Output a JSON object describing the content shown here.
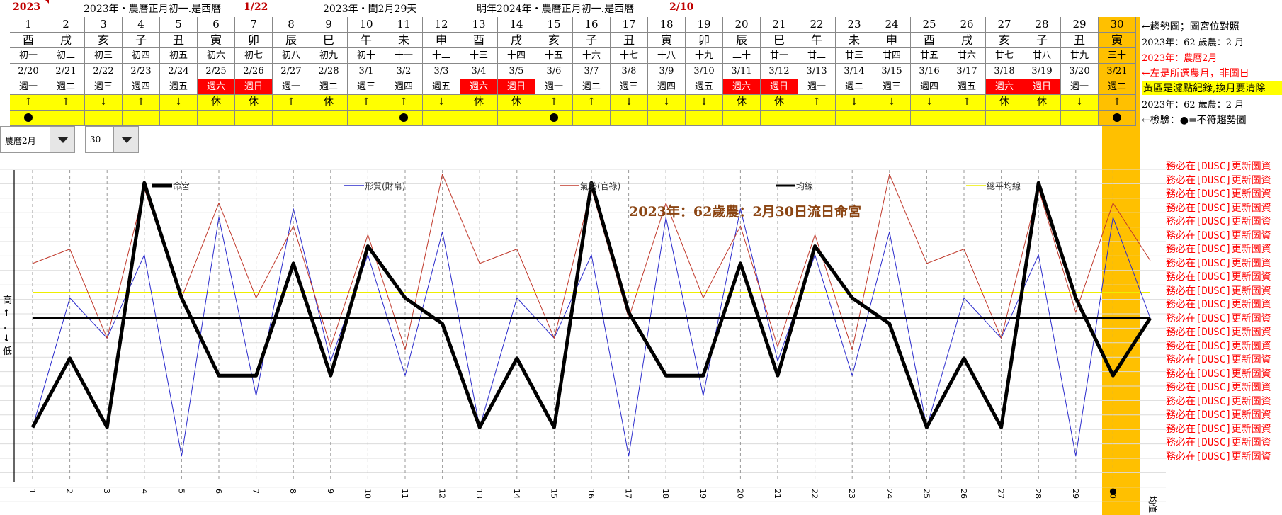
{
  "header": {
    "year": "2023",
    "info1": "2023年・農曆正月初一.是西曆",
    "info1_date": "1/22",
    "info2": "2023年・閏2月29天",
    "info3": "明年2024年・農曆正月初一.是西曆",
    "info3_date": "2/10"
  },
  "days": [
    "1",
    "2",
    "3",
    "4",
    "5",
    "6",
    "7",
    "8",
    "9",
    "10",
    "11",
    "12",
    "13",
    "14",
    "15",
    "16",
    "17",
    "18",
    "19",
    "20",
    "21",
    "22",
    "23",
    "24",
    "25",
    "26",
    "27",
    "28",
    "29",
    "30"
  ],
  "branches": [
    "酉",
    "戌",
    "亥",
    "子",
    "丑",
    "寅",
    "卯",
    "辰",
    "巳",
    "午",
    "未",
    "申",
    "酉",
    "戌",
    "亥",
    "子",
    "丑",
    "寅",
    "卯",
    "辰",
    "巳",
    "午",
    "未",
    "申",
    "酉",
    "戌",
    "亥",
    "子",
    "丑",
    "寅"
  ],
  "lunar": [
    "初一",
    "初二",
    "初三",
    "初四",
    "初五",
    "初六",
    "初七",
    "初八",
    "初九",
    "初十",
    "十一",
    "十二",
    "十三",
    "十四",
    "十五",
    "十六",
    "十七",
    "十八",
    "十九",
    "二十",
    "廿一",
    "廿二",
    "廿三",
    "廿四",
    "廿五",
    "廿六",
    "廿七",
    "廿八",
    "廿九",
    "三十"
  ],
  "solar": [
    "2/20",
    "2/21",
    "2/22",
    "2/23",
    "2/24",
    "2/25",
    "2/26",
    "2/27",
    "2/28",
    "3/1",
    "3/2",
    "3/3",
    "3/4",
    "3/5",
    "3/6",
    "3/7",
    "3/8",
    "3/9",
    "3/10",
    "3/11",
    "3/12",
    "3/13",
    "3/14",
    "3/15",
    "3/16",
    "3/17",
    "3/18",
    "3/19",
    "3/20",
    "3/21"
  ],
  "weekday": [
    "週一",
    "週二",
    "週三",
    "週四",
    "週五",
    "週六",
    "週日",
    "週一",
    "週二",
    "週三",
    "週四",
    "週五",
    "週六",
    "週日",
    "週一",
    "週二",
    "週三",
    "週四",
    "週五",
    "週六",
    "週日",
    "週一",
    "週二",
    "週三",
    "週四",
    "週五",
    "週六",
    "週日",
    "週一",
    "週二"
  ],
  "trend": [
    "↑",
    "↑",
    "↓",
    "↑",
    "↓",
    "休",
    "休",
    "↑",
    "休",
    "↑",
    "↑",
    "↓",
    "休",
    "休",
    "↑",
    "↑",
    "↓",
    "↓",
    "↓",
    "休",
    "休",
    "↑",
    "↓",
    "↓",
    "↓",
    "↑",
    "休",
    "休",
    "↓",
    "↑"
  ],
  "dots": [
    1,
    0,
    0,
    0,
    0,
    0,
    0,
    0,
    0,
    0,
    1,
    0,
    0,
    0,
    1,
    0,
    0,
    0,
    0,
    0,
    0,
    0,
    0,
    0,
    0,
    0,
    0,
    0,
    0,
    1
  ],
  "notes": {
    "n1": "←趨勢圖；圖宮位對照",
    "n2": "2023年：62 歲農：2 月",
    "n3": "2023年：農曆2月",
    "n4": "←左是所選農月，非圖日",
    "n5": "黃區是濾點紀錄,換月要清除",
    "n6": "2023年：62 歲農：2 月",
    "n7": "←檢驗：●=不符趨勢圖"
  },
  "controls": {
    "month_value": "農曆2月",
    "day_value": "30"
  },
  "colors": {
    "accent_orange": "#ffc000",
    "yellow": "#ffff00",
    "weekend_red": "#ff0000",
    "series_red": "#c0392b",
    "series_blue": "#2b2bcc"
  },
  "warning_text": "務必在[DUSC]更新圖資",
  "chart_data": {
    "type": "line",
    "title": "2023年：62歲農：2月30日流日命宮",
    "ylabel": "高 ↑ ． ↓ 低",
    "x": [
      1,
      2,
      3,
      4,
      5,
      6,
      7,
      8,
      9,
      10,
      11,
      12,
      13,
      14,
      15,
      16,
      17,
      18,
      19,
      20,
      21,
      22,
      23,
      24,
      25,
      26,
      27,
      28,
      29,
      30,
      31
    ],
    "categories": [
      "1",
      "2",
      "3",
      "4",
      "5",
      "6",
      "7",
      "8",
      "9",
      "10",
      "11",
      "12",
      "13",
      "14",
      "15",
      "16",
      "17",
      "18",
      "19",
      "20",
      "21",
      "22",
      "23",
      "24",
      "25",
      "26",
      "27",
      "28",
      "29",
      "30",
      "均值"
    ],
    "ylim": [
      0,
      10
    ],
    "series": [
      {
        "name": "命宮",
        "color": "#000000",
        "width": 5,
        "values": [
          1.2,
          3.6,
          1.2,
          9.7,
          5.7,
          3.0,
          3.0,
          6.9,
          3.0,
          7.5,
          5.7,
          4.8,
          1.2,
          3.6,
          1.2,
          9.7,
          5.2,
          3.0,
          3.0,
          6.9,
          3.0,
          7.5,
          5.7,
          4.8,
          1.2,
          3.6,
          1.2,
          9.7,
          5.7,
          3.0,
          5.0
        ]
      },
      {
        "name": "形質(財帛)",
        "color": "#2b2bcc",
        "width": 1,
        "values": [
          1.2,
          5.7,
          4.3,
          7.2,
          0.2,
          8.5,
          2.3,
          8.8,
          3.5,
          7.2,
          3.0,
          8.0,
          1.2,
          5.7,
          4.3,
          7.2,
          0.2,
          8.5,
          2.3,
          8.8,
          3.5,
          7.2,
          3.0,
          8.0,
          1.2,
          5.7,
          4.3,
          7.2,
          0.2,
          8.5,
          5.0
        ]
      },
      {
        "name": "氣勢(官祿)",
        "color": "#c0392b",
        "width": 1,
        "values": [
          6.9,
          7.4,
          4.3,
          9.5,
          5.7,
          9.0,
          5.7,
          8.2,
          4.0,
          7.9,
          3.9,
          10.0,
          6.9,
          7.4,
          4.3,
          9.5,
          5.0,
          9.0,
          5.7,
          8.2,
          4.0,
          7.9,
          3.9,
          10.0,
          6.9,
          7.4,
          4.3,
          9.5,
          5.2,
          9.0,
          7.0
        ]
      },
      {
        "name": "均線",
        "color": "#000000",
        "width": 3,
        "values": [
          5.0,
          5.0,
          5.0,
          5.0,
          5.0,
          5.0,
          5.0,
          5.0,
          5.0,
          5.0,
          5.0,
          5.0,
          5.0,
          5.0,
          5.0,
          5.0,
          5.0,
          5.0,
          5.0,
          5.0,
          5.0,
          5.0,
          5.0,
          5.0,
          5.0,
          5.0,
          5.0,
          5.0,
          5.0,
          5.0,
          5.0
        ]
      },
      {
        "name": "總平均線",
        "color": "#eeee00",
        "width": 1,
        "values": [
          5.9,
          5.9,
          5.9,
          5.9,
          5.9,
          5.9,
          5.9,
          5.9,
          5.9,
          5.9,
          5.9,
          5.9,
          5.9,
          5.9,
          5.9,
          5.9,
          5.9,
          5.9,
          5.9,
          5.9,
          5.9,
          5.9,
          5.9,
          5.9,
          5.9,
          5.9,
          5.9,
          5.9,
          5.9,
          5.9,
          5.9
        ]
      }
    ],
    "highlight_day": "30",
    "grid": true,
    "legend": "top"
  }
}
